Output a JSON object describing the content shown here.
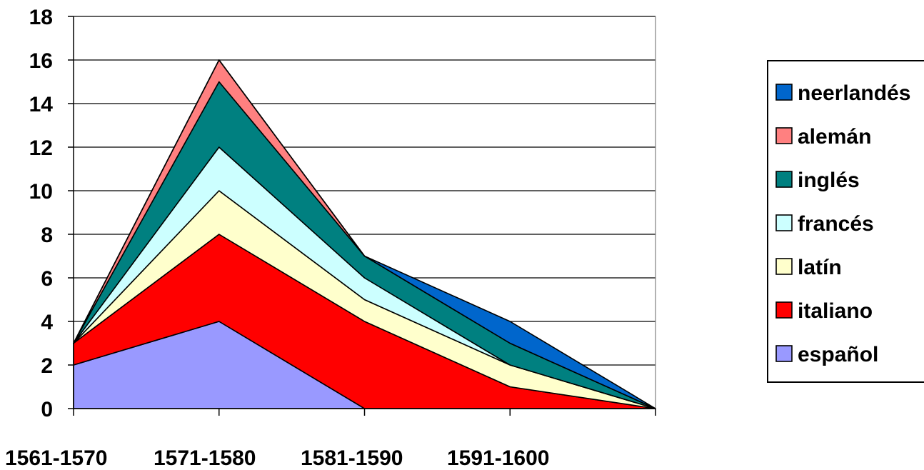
{
  "chart_data": {
    "type": "area",
    "stacked": true,
    "categories": [
      "1561-1570",
      "1571-1580",
      "1581-1590",
      "1591-1600",
      ""
    ],
    "series": [
      {
        "name": "español",
        "values": [
          2,
          4,
          0,
          0,
          0
        ],
        "color": "#9999ff"
      },
      {
        "name": "italiano",
        "values": [
          1,
          4,
          4,
          1,
          0
        ],
        "color": "#ff0000"
      },
      {
        "name": "latín",
        "values": [
          0,
          2,
          1,
          1,
          0
        ],
        "color": "#ffffcc"
      },
      {
        "name": "francés",
        "values": [
          0,
          2,
          1,
          0,
          0
        ],
        "color": "#ccffff"
      },
      {
        "name": "inglés",
        "values": [
          0,
          3,
          1,
          1,
          0
        ],
        "color": "#008080"
      },
      {
        "name": "alemán",
        "values": [
          0,
          1,
          0,
          0,
          0
        ],
        "color": "#ff8080"
      },
      {
        "name": "neerlandés",
        "values": [
          0,
          0,
          0,
          1,
          0
        ],
        "color": "#0066cc"
      }
    ],
    "ylim": [
      0,
      18
    ],
    "yticks": [
      "0",
      "2",
      "4",
      "6",
      "8",
      "10",
      "12",
      "14",
      "16",
      "18"
    ],
    "grid": true,
    "legend_position": "right"
  }
}
